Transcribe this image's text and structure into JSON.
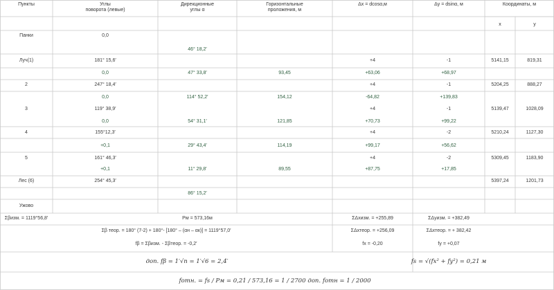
{
  "header": {
    "points": "Пункты",
    "angles_l1": "Углы",
    "angles_l2": "поворота (левые)",
    "dir_l1": "Дирекционные",
    "dir_l2": "углы α",
    "horiz_l1": "Горизонтальные",
    "horiz_l2": "проложения, м",
    "dx": "Δx = dcosα,м",
    "dy": "Δy = dsinα, м",
    "coords": "Координаты, м",
    "x": "x",
    "y": "y"
  },
  "rows": {
    "panki": {
      "point": "Панки",
      "angle": "0,0"
    },
    "dir_panki": "46° 18,2′",
    "luch": {
      "point": "Луч(1)",
      "angle": "181° 15,6′",
      "dx": "+4",
      "dy": "-1",
      "x": "5141,15",
      "y": "819,31"
    },
    "luch_b": {
      "corr": "0,0",
      "dir": "47° 33,8′",
      "dist": "93,45",
      "dx": "+63,06",
      "dy": "+68,97"
    },
    "p2": {
      "point": "2",
      "angle": "247° 18,4′",
      "dx": "+4",
      "dy": "-1",
      "x": "5204,25",
      "y": "888,27"
    },
    "p2_b": {
      "corr": "0,0",
      "dir": "114° 52,2′",
      "dist": "154,12",
      "dx": "-64,82",
      "dy": "+139,83"
    },
    "p3": {
      "point": "3",
      "angle": "119° 38,9′",
      "dx": "+4",
      "dy": "-1",
      "x": "5139,47",
      "y": "1028,09"
    },
    "p3_b": {
      "corr": "0,0",
      "dir": "54° 31,1′",
      "dist": "121,85",
      "dx": "+70,73",
      "dy": "+99,22"
    },
    "p4": {
      "point": "4",
      "angle": "155°12,3′",
      "dx": "+4",
      "dy": "-2",
      "x": "5210,24",
      "y": "1127,30"
    },
    "p4_b": {
      "corr": "+0,1",
      "dir": "29° 43,4′",
      "dist": "114,19",
      "dx": "+99,17",
      "dy": "+56,62"
    },
    "p5": {
      "point": "5",
      "angle": "161° 46,3′",
      "dx": "+4",
      "dy": "-2",
      "x": "5309,45",
      "y": "1183,90"
    },
    "p5_b": {
      "corr": "+0,1",
      "dir": "11° 29,8′",
      "dist": "89,55",
      "dx": "+87,75",
      "dy": "+17,85"
    },
    "les": {
      "point": "Лес (6)",
      "angle": "254° 45,3′",
      "x": "5397,24",
      "y": "1201,73"
    },
    "dir_les": "86° 15,2′",
    "uzhovo": {
      "point": "Ужово"
    }
  },
  "summary": {
    "sum_beta": "Σβизм. = 1119°56,8′",
    "perimeter": "Рм = 573,16м",
    "sum_dx_meas": "ΣΔxизм. = +255,89",
    "sum_dy_meas": "ΣΔyизм. = +382,49",
    "sum_beta_theor": "Σβ теор. = 180° (7-2) + 180°- [180° – (αн – αк)] = 1119°57,0′",
    "sum_dx_theor": "ΣΔxтеор. = +256,09",
    "sum_dy_theor": "ΣΔxтеор. = + 382,42",
    "f_beta": "fβ = Σβизм. - Σβтеор. = -0,2′",
    "f_x": "fx = -0,20",
    "f_y": "fy = +0,07",
    "dop_f_beta": "доп. fβ = 1′√n = 1′√6 = 2,4′",
    "f_s": "fs = √(fx² + fy²) = 0,21 м",
    "f_otn": "fотн. = fs / Pм = 0,21 / 573,16 = 1 / 2700",
    "dop_f_otn": "доп. fотн = 1 / 2000"
  }
}
